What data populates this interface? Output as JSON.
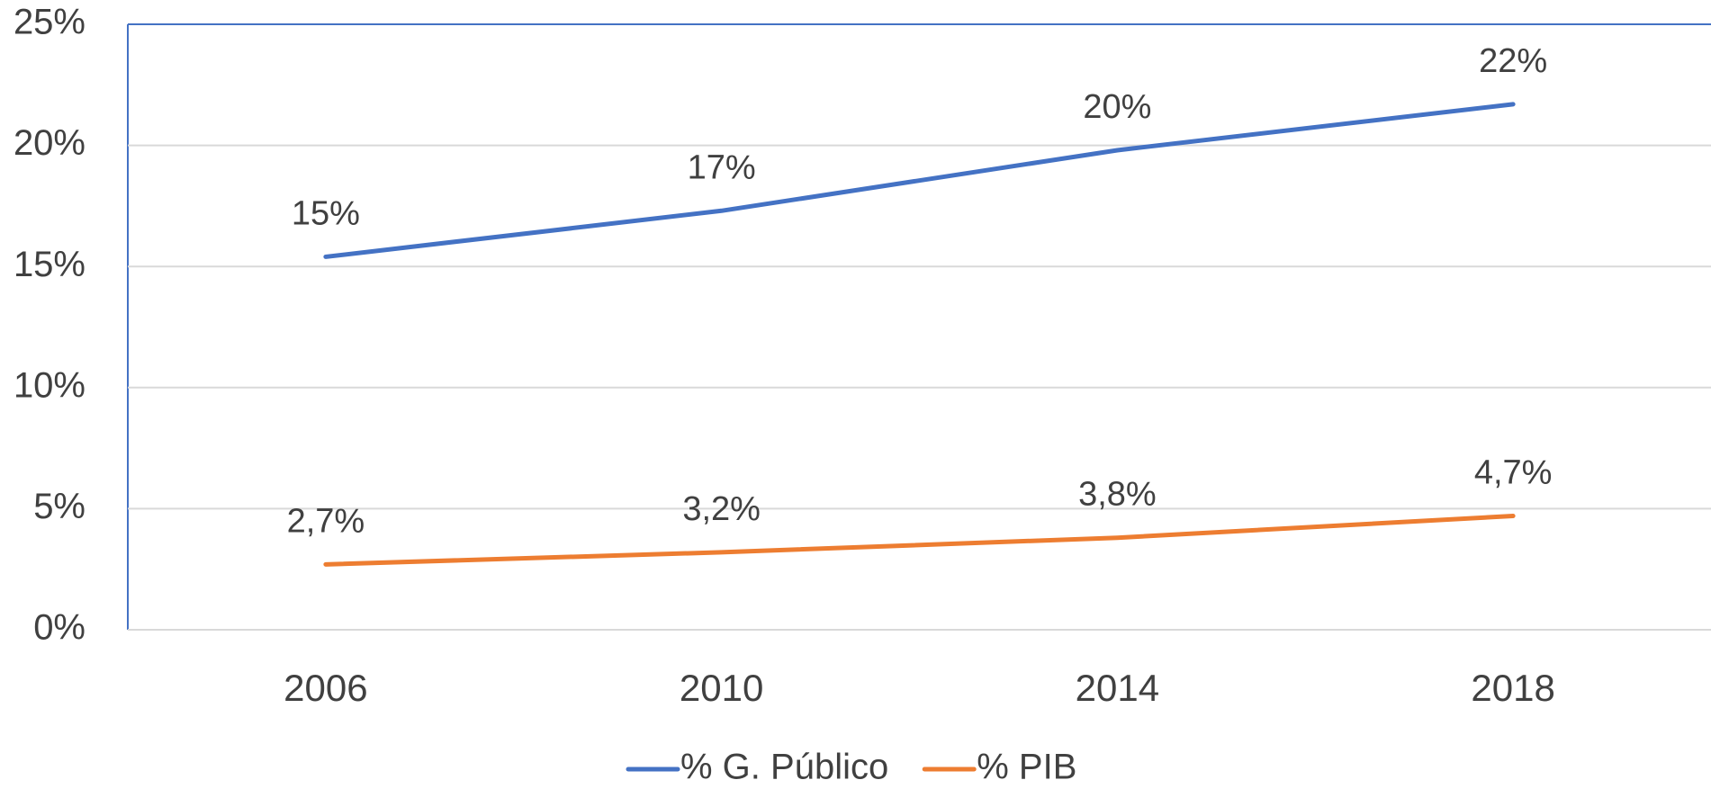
{
  "chart_data": {
    "type": "line",
    "categories": [
      "2006",
      "2010",
      "2014",
      "2018"
    ],
    "series": [
      {
        "name": "% G. Público",
        "color": "#4472c4",
        "values": [
          15.4,
          17.3,
          19.8,
          21.7
        ],
        "value_labels": [
          "15%",
          "17%",
          "20%",
          "22%"
        ]
      },
      {
        "name": "% PIB",
        "color": "#ed7d31",
        "values": [
          2.7,
          3.2,
          3.8,
          4.7
        ],
        "value_labels": [
          "2,7%",
          "3,2%",
          "3,8%",
          "4,7%"
        ]
      }
    ],
    "ylim": [
      0,
      25
    ],
    "yticks": [
      {
        "value": 0,
        "label": "0%"
      },
      {
        "value": 5,
        "label": "5%"
      },
      {
        "value": 10,
        "label": "10%"
      },
      {
        "value": 15,
        "label": "15%"
      },
      {
        "value": 20,
        "label": "20%"
      },
      {
        "value": 25,
        "label": "25%"
      }
    ],
    "grid": true,
    "legend": "bottom"
  }
}
